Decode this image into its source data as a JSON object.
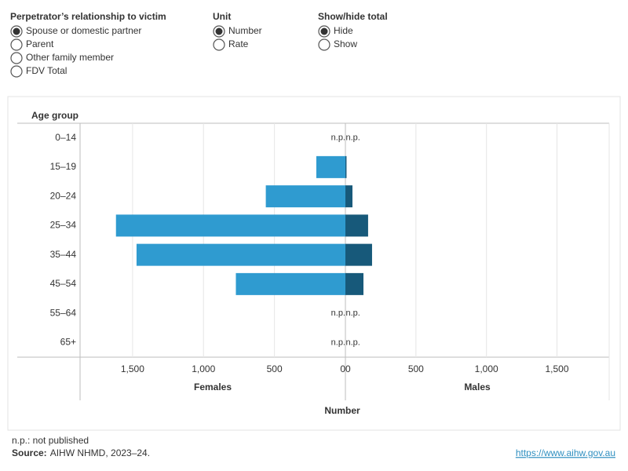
{
  "controls": [
    {
      "title": "Perpetrator’s relationship to victim",
      "options": [
        "Spouse or domestic partner",
        "Parent",
        "Other family member",
        "FDV Total"
      ],
      "selected": 0
    },
    {
      "title": "Unit",
      "options": [
        "Number",
        "Rate"
      ],
      "selected": 0
    },
    {
      "title": "Show/hide total",
      "options": [
        "Hide",
        "Show"
      ],
      "selected": 0
    }
  ],
  "chart_data": {
    "type": "butterfly",
    "y_label": "Age group",
    "x_label": "Number",
    "categories": [
      "0–14",
      "15–19",
      "20–24",
      "25–34",
      "35–44",
      "45–54",
      "55–64",
      "65+"
    ],
    "series": [
      {
        "name": "Females",
        "color": "#2f9bd0",
        "values": [
          null,
          205,
          561,
          1617,
          1472,
          772,
          null,
          null
        ],
        "value_labels": [
          "n.p.",
          null,
          null,
          null,
          null,
          null,
          "n.p.",
          "n.p."
        ]
      },
      {
        "name": "Males",
        "color": "#17597a",
        "values": [
          null,
          8,
          50,
          161,
          189,
          128,
          null,
          null
        ],
        "value_labels": [
          "n.p.",
          null,
          null,
          null,
          null,
          null,
          "n.p.",
          "n.p."
        ]
      }
    ],
    "xlim": [
      0,
      1870
    ],
    "xticks": [
      {
        "value": 1500,
        "label": "1,500"
      },
      {
        "value": 1000,
        "label": "1,000"
      },
      500,
      0
    ],
    "grid": true
  },
  "footer": {
    "note": "n.p.: not published",
    "source_label": "Source:",
    "source": "AIHW NHMD, 2023–24.",
    "link": "https://www.aihw.gov.au"
  }
}
